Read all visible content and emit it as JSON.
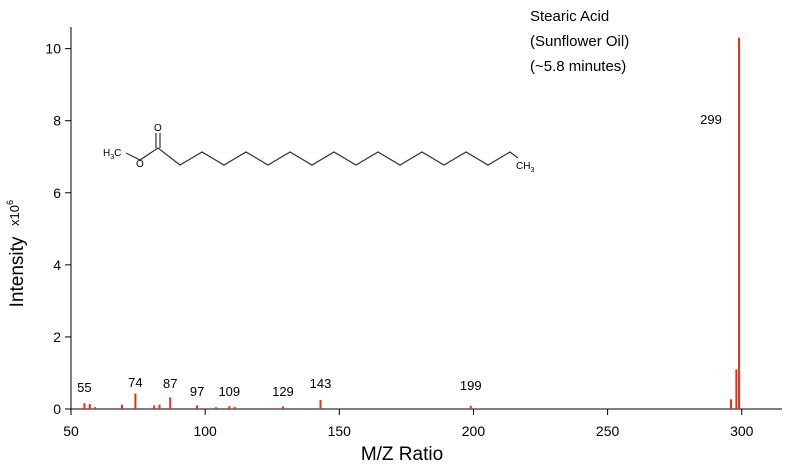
{
  "chart_data": {
    "type": "bar",
    "title": "",
    "xlabel": "M/Z Ratio",
    "ylabel": "Intensity",
    "y_multiplier": {
      "base": "x10",
      "exponent": "6"
    },
    "xlim": [
      50,
      315
    ],
    "ylim": [
      0,
      10.6
    ],
    "x_ticks": [
      50,
      100,
      150,
      200,
      250,
      300
    ],
    "y_ticks": [
      0,
      2,
      4,
      6,
      8,
      10
    ],
    "grid": false,
    "series": [
      {
        "color": "#e0301e",
        "points": [
          {
            "x": 55,
            "y": 0.16
          },
          {
            "x": 57,
            "y": 0.14
          },
          {
            "x": 59,
            "y": 0.05
          },
          {
            "x": 69,
            "y": 0.12
          },
          {
            "x": 74,
            "y": 0.43
          },
          {
            "x": 81,
            "y": 0.1
          },
          {
            "x": 83,
            "y": 0.12
          },
          {
            "x": 87,
            "y": 0.32
          },
          {
            "x": 97,
            "y": 0.1
          },
          {
            "x": 104,
            "y": 0.05
          },
          {
            "x": 109,
            "y": 0.08
          },
          {
            "x": 111,
            "y": 0.06
          },
          {
            "x": 129,
            "y": 0.07
          },
          {
            "x": 143,
            "y": 0.25
          },
          {
            "x": 199,
            "y": 0.09
          },
          {
            "x": 296,
            "y": 0.27
          },
          {
            "x": 298,
            "y": 1.1
          },
          {
            "x": 299,
            "y": 10.3
          }
        ]
      }
    ],
    "peak_labels": [
      {
        "x": 55,
        "text": "55"
      },
      {
        "x": 74,
        "text": "74"
      },
      {
        "x": 87,
        "text": "87"
      },
      {
        "x": 97,
        "text": "97"
      },
      {
        "x": 109,
        "text": "109"
      },
      {
        "x": 129,
        "text": "129"
      },
      {
        "x": 143,
        "text": "143"
      },
      {
        "x": 199,
        "text": "199"
      }
    ],
    "main_peak_label": {
      "x": 299,
      "text": "299"
    },
    "annotation": [
      "Stearic Acid",
      "(Sunflower Oil)",
      "(~5.8 minutes)"
    ]
  },
  "molecule": {
    "left_group_main": "H",
    "left_group_sub": "3",
    "left_group_tail": "C",
    "oxygen_ester": "O",
    "oxygen_carbonyl": "O",
    "right_group_main": "CH",
    "right_group_sub": "3"
  }
}
